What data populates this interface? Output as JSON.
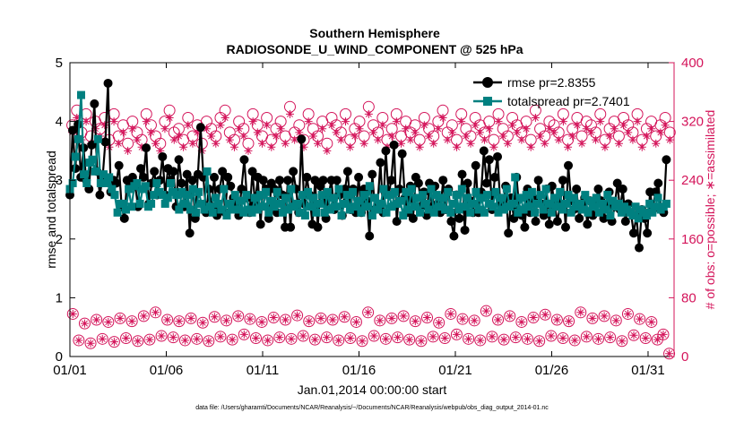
{
  "chart_data": {
    "type": "line",
    "title": "Southern Hemisphere",
    "subtitle": "RADIOSONDE_U_WIND_COMPONENT @ 525 hPa",
    "xlabel": "Jan.01,2014 00:00:00 start",
    "ylabel": "rmse and totalspread",
    "y2label": "# of obs: o=possible; ∗=assimilated",
    "footnote": "data file: /Users/gharamti/Documents/NCAR/Reanalysis/~/Documents/NCAR/Reanalysis/webpub/obs_diag_output_2014-01.nc",
    "xlim": [
      0,
      31.35
    ],
    "ylim": [
      0,
      5
    ],
    "y2lim": [
      0,
      400
    ],
    "xticks": [
      0,
      5,
      10,
      15,
      20,
      25,
      30
    ],
    "xtick_labels": [
      "01/01",
      "01/06",
      "01/11",
      "01/16",
      "01/21",
      "01/26",
      "01/31"
    ],
    "yticks": [
      0,
      1,
      2,
      3,
      4,
      5
    ],
    "ytick_labels": [
      "0",
      "1",
      "2",
      "3",
      "4",
      "5"
    ],
    "y2ticks": [
      0,
      80,
      160,
      240,
      320,
      400
    ],
    "y2tick_labels": [
      "0",
      "80",
      "160",
      "240",
      "320",
      "400"
    ],
    "colors": {
      "rmse": "#000000",
      "spread": "#008080",
      "obs": "#d4145a"
    },
    "legend": {
      "position": "top-right",
      "entries": [
        "rmse pr=2.8355",
        "totalspread pr=2.7401"
      ]
    },
    "series": [
      {
        "name": "rmse",
        "values": [
          2.75,
          3.85,
          3.2,
          3.95,
          3.05,
          3.55,
          3.0,
          2.85,
          3.6,
          4.3,
          3.15,
          2.75,
          3.05,
          3.65,
          4.65,
          2.8,
          3.0,
          2.95,
          3.25,
          2.55,
          2.35,
          3.0,
          2.95,
          3.05,
          2.9,
          2.55,
          3.2,
          3.05,
          3.55,
          2.6,
          2.95,
          3.15,
          2.75,
          3.0,
          3.4,
          2.75,
          3.2,
          3.0,
          3.15,
          2.55,
          3.35,
          2.95,
          2.55,
          3.1,
          2.1,
          3.0,
          2.35,
          3.1,
          3.9,
          3.05,
          2.45,
          2.85,
          2.55,
          3.05,
          2.4,
          2.85,
          3.15,
          2.45,
          3.05,
          2.9,
          2.7,
          2.55,
          2.4,
          2.85,
          3.35,
          2.7,
          2.45,
          3.15,
          2.6,
          3.05,
          2.25,
          3.0,
          2.85,
          2.35,
          2.95,
          2.85,
          2.45,
          3.0,
          2.75,
          2.2,
          3.0,
          2.2,
          3.15,
          2.85,
          2.45,
          3.7,
          2.6,
          3.05,
          2.75,
          2.25,
          3.0,
          2.2,
          2.9,
          3.0,
          2.35,
          2.75,
          3.0,
          2.5,
          3.0,
          2.75,
          2.4,
          2.85,
          3.15,
          2.5,
          2.85,
          2.45,
          3.05,
          2.45,
          2.85,
          2.65,
          2.05,
          3.1,
          2.5,
          2.6,
          3.3,
          2.45,
          3.5,
          2.75,
          3.0,
          3.6,
          2.3,
          2.85,
          3.45,
          2.7,
          2.45,
          2.9,
          2.35,
          3.05,
          2.95,
          2.55,
          2.8,
          2.4,
          2.95,
          2.55,
          2.9,
          2.6,
          2.45,
          3.0,
          2.5,
          2.85,
          2.3,
          2.05,
          2.75,
          2.35,
          3.1,
          2.15,
          2.95,
          2.65,
          2.45,
          3.25,
          2.45,
          2.8,
          3.5,
          2.95,
          3.35,
          2.5,
          3.05,
          3.4,
          2.6,
          2.55,
          2.9,
          2.1,
          2.7,
          2.35,
          3.05,
          2.5,
          2.4,
          2.2,
          2.85,
          2.45,
          2.7,
          2.3,
          3.0,
          2.6,
          2.4,
          2.85,
          2.25,
          2.9,
          2.55,
          2.3,
          2.6,
          3.0,
          2.2,
          3.25,
          2.65,
          2.5,
          2.85,
          2.35,
          2.6,
          2.7,
          2.25,
          2.65,
          2.4,
          2.6,
          2.85,
          2.65,
          2.35,
          2.6,
          2.8,
          2.3,
          2.55,
          2.95,
          2.5,
          2.85,
          2.3,
          2.6,
          2.45,
          2.1,
          2.4,
          1.85,
          2.5,
          2.35,
          2.1,
          2.8,
          2.5,
          2.8,
          2.95,
          2.5,
          2.45,
          3.35
        ]
      },
      {
        "name": "totalspread",
        "values": [
          2.85,
          2.95,
          3.4,
          3.7,
          4.45,
          3.1,
          2.95,
          3.3,
          3.35,
          3.15,
          3.7,
          2.95,
          3.1,
          2.95,
          3.05,
          2.85,
          2.75,
          2.45,
          2.6,
          2.6,
          2.5,
          2.85,
          2.55,
          2.9,
          2.95,
          2.6,
          2.85,
          2.9,
          2.55,
          2.6,
          2.75,
          2.95,
          2.8,
          2.75,
          2.6,
          2.7,
          2.95,
          2.8,
          2.75,
          2.5,
          2.8,
          2.6,
          2.75,
          2.5,
          2.85,
          2.45,
          2.8,
          2.6,
          2.5,
          3.15,
          2.55,
          2.45,
          2.7,
          2.6,
          2.5,
          2.85,
          2.4,
          2.6,
          2.5,
          2.75,
          2.5,
          2.65,
          2.45,
          2.75,
          2.5,
          2.45,
          2.7,
          2.5,
          2.75,
          2.55,
          2.8,
          2.45,
          2.65,
          2.55,
          2.8,
          2.6,
          2.45,
          2.7,
          2.5,
          2.85,
          2.55,
          2.6,
          2.45,
          2.75,
          2.4,
          2.8,
          2.55,
          2.7,
          2.45,
          2.6,
          2.75,
          2.45,
          2.8,
          2.5,
          2.7,
          2.55,
          2.85,
          2.4,
          2.6,
          2.75,
          2.5,
          2.8,
          2.55,
          2.65,
          2.45,
          2.75,
          2.55,
          2.9,
          2.4,
          2.7,
          2.5,
          2.6,
          2.85,
          2.45,
          2.75,
          2.55,
          2.8,
          2.6,
          2.65,
          2.4,
          2.8,
          2.5,
          2.85,
          2.55,
          2.7,
          2.45,
          2.75,
          2.6,
          2.5,
          2.85,
          2.45,
          2.75,
          2.55,
          2.7,
          2.5,
          2.8,
          2.45,
          2.6,
          2.75,
          2.5,
          2.85,
          2.55,
          2.7,
          2.45,
          2.6,
          2.8,
          2.5,
          2.7,
          2.45,
          2.75,
          2.6,
          2.55,
          2.8,
          2.45,
          2.7,
          2.5,
          2.85,
          2.55,
          2.6,
          3.05,
          2.45,
          2.7,
          2.5,
          2.75,
          2.55,
          2.8,
          2.45,
          2.6,
          2.75,
          2.5,
          2.85,
          2.6,
          2.45,
          2.7,
          2.55,
          2.8,
          2.5,
          2.6,
          2.75,
          2.45,
          2.7,
          2.55,
          2.6,
          2.5,
          2.75,
          2.45,
          2.65,
          2.55,
          2.7,
          2.45,
          2.6,
          2.5,
          2.75,
          2.4,
          2.65,
          2.55,
          2.6,
          2.45,
          2.55,
          2.5,
          2.45,
          2.4,
          2.55,
          2.35,
          2.5,
          2.45,
          2.4,
          2.6,
          2.45,
          2.55,
          2.7,
          2.5,
          2.55,
          2.6
        ]
      }
    ],
    "obs_possible": [
      315,
      335,
      305,
      330,
      300,
      320,
      310,
      325,
      295,
      330,
      300,
      315,
      290,
      320,
      305,
      295,
      330,
      315,
      300,
      290,
      320,
      335,
      305,
      310,
      295,
      325,
      300,
      315,
      290,
      320,
      310,
      300,
      325,
      335,
      305,
      295,
      320,
      310,
      290,
      330,
      315,
      300,
      325,
      295,
      310,
      320,
      300,
      340,
      305,
      315,
      295,
      330,
      310,
      300,
      320,
      290,
      325,
      315,
      305,
      330,
      295,
      310,
      320,
      300,
      340,
      315,
      305,
      325,
      295,
      310,
      330,
      300,
      320,
      305,
      315,
      295,
      325,
      310,
      300,
      320,
      335,
      305,
      315,
      295,
      330,
      310,
      300,
      325,
      315,
      305,
      320,
      295,
      330,
      310,
      300,
      325,
      315,
      305,
      320,
      295,
      335,
      310,
      300,
      320,
      315,
      305,
      330,
      295,
      310,
      325,
      300,
      320,
      315,
      305,
      330,
      295,
      310,
      320,
      300,
      325,
      315,
      305,
      330,
      295,
      310,
      320,
      300,
      315,
      325,
      305
    ],
    "obs_assimilated": [
      305,
      325,
      295,
      320,
      290,
      310,
      300,
      315,
      285,
      320,
      290,
      305,
      280,
      310,
      295,
      285,
      320,
      305,
      290,
      280,
      310,
      325,
      295,
      300,
      285,
      315,
      290,
      305,
      280,
      310,
      300,
      290,
      315,
      325,
      295,
      285,
      310,
      300,
      280,
      320,
      305,
      290,
      315,
      285,
      300,
      310,
      290,
      330,
      295,
      305,
      285,
      320,
      300,
      290,
      310,
      280,
      315,
      305,
      295,
      320,
      285,
      300,
      310,
      290,
      330,
      305,
      295,
      315,
      285,
      300,
      320,
      290,
      310,
      295,
      305,
      285,
      315,
      300,
      290,
      310,
      325,
      295,
      305,
      285,
      320,
      300,
      290,
      315,
      305,
      295,
      310,
      285,
      320,
      300,
      290,
      315,
      305,
      295,
      310,
      285,
      325,
      300,
      290,
      310,
      305,
      295,
      320,
      285,
      300,
      315,
      290,
      310,
      305,
      295,
      320,
      285,
      300,
      310,
      290,
      315,
      305,
      295,
      320,
      285,
      300,
      310,
      290,
      305,
      315,
      295
    ],
    "obs_low_possible": [
      58,
      22,
      45,
      18,
      50,
      24,
      47,
      20,
      52,
      25,
      48,
      21,
      55,
      23,
      60,
      28,
      50,
      26,
      48,
      22,
      52,
      24,
      46,
      21,
      54,
      27,
      49,
      23,
      55,
      30,
      51,
      25,
      47,
      22,
      53,
      26,
      50,
      24,
      56,
      28,
      48,
      23,
      52,
      26,
      50,
      22,
      54,
      25,
      47,
      21,
      60,
      28,
      49,
      24,
      52,
      26,
      55,
      23,
      48,
      21,
      53,
      27,
      46,
      25,
      58,
      30,
      51,
      24,
      49,
      22,
      62,
      27,
      50,
      23,
      55,
      26,
      47,
      24,
      53,
      21,
      57,
      28,
      50,
      25,
      48,
      22,
      60,
      27,
      52,
      24,
      55,
      26,
      49,
      21,
      58,
      29,
      51,
      25,
      47,
      23,
      30,
      4
    ],
    "obs_low_assimilated": [
      58,
      22,
      45,
      18,
      50,
      24,
      47,
      20,
      52,
      25,
      48,
      21,
      55,
      23,
      60,
      28,
      50,
      26,
      48,
      22,
      52,
      24,
      46,
      21,
      54,
      27,
      49,
      23,
      55,
      30,
      51,
      25,
      47,
      22,
      53,
      26,
      50,
      24,
      56,
      28,
      48,
      23,
      52,
      26,
      50,
      22,
      54,
      25,
      47,
      21,
      60,
      28,
      49,
      24,
      52,
      26,
      55,
      23,
      48,
      21,
      53,
      27,
      46,
      25,
      58,
      30,
      51,
      24,
      49,
      22,
      62,
      27,
      50,
      23,
      55,
      26,
      47,
      24,
      53,
      21,
      57,
      28,
      50,
      25,
      48,
      22,
      60,
      27,
      52,
      24,
      55,
      26,
      49,
      21,
      58,
      29,
      51,
      25,
      47,
      23,
      30,
      4
    ]
  }
}
